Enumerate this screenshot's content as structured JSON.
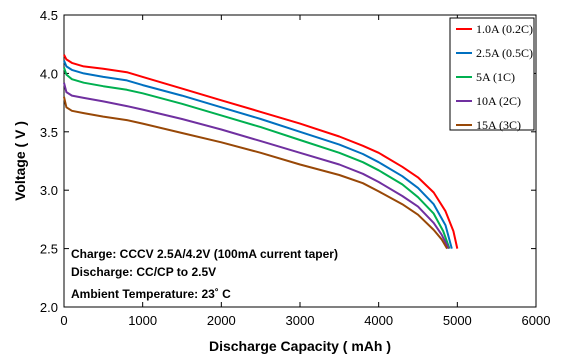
{
  "chart_data": {
    "type": "line",
    "title": "",
    "xlabel": "Discharge Capacity ( mAh )",
    "ylabel": "Voltage ( V )",
    "xlim": [
      0,
      6000
    ],
    "ylim": [
      2.0,
      4.5
    ],
    "xticks": [
      "0",
      "1000",
      "2000",
      "3000",
      "4000",
      "5000",
      "6000"
    ],
    "yticks": [
      "2.0",
      "2.5",
      "3.0",
      "3.5",
      "4.0",
      "4.5"
    ],
    "grid": false,
    "legend_position": "top-right",
    "series": [
      {
        "name": "1.0A (0.2C)",
        "color": "#ff0000",
        "points": [
          [
            0,
            4.16
          ],
          [
            30,
            4.12
          ],
          [
            100,
            4.09
          ],
          [
            250,
            4.06
          ],
          [
            500,
            4.04
          ],
          [
            800,
            4.01
          ],
          [
            1000,
            3.97
          ],
          [
            1500,
            3.87
          ],
          [
            2000,
            3.77
          ],
          [
            2500,
            3.67
          ],
          [
            3000,
            3.57
          ],
          [
            3500,
            3.46
          ],
          [
            3800,
            3.38
          ],
          [
            4000,
            3.32
          ],
          [
            4300,
            3.2
          ],
          [
            4500,
            3.11
          ],
          [
            4700,
            2.98
          ],
          [
            4850,
            2.82
          ],
          [
            4950,
            2.65
          ],
          [
            5000,
            2.5
          ]
        ]
      },
      {
        "name": "2.5A (0.5C)",
        "color": "#0070c0",
        "points": [
          [
            0,
            4.11
          ],
          [
            30,
            4.06
          ],
          [
            100,
            4.03
          ],
          [
            250,
            4.0
          ],
          [
            500,
            3.97
          ],
          [
            800,
            3.94
          ],
          [
            1000,
            3.9
          ],
          [
            1500,
            3.81
          ],
          [
            2000,
            3.71
          ],
          [
            2500,
            3.61
          ],
          [
            3000,
            3.5
          ],
          [
            3500,
            3.39
          ],
          [
            3800,
            3.31
          ],
          [
            4000,
            3.24
          ],
          [
            4300,
            3.12
          ],
          [
            4500,
            3.02
          ],
          [
            4700,
            2.88
          ],
          [
            4850,
            2.7
          ],
          [
            4930,
            2.5
          ]
        ]
      },
      {
        "name": "5A (1C)",
        "color": "#00b050",
        "points": [
          [
            0,
            4.05
          ],
          [
            30,
            3.99
          ],
          [
            100,
            3.95
          ],
          [
            250,
            3.92
          ],
          [
            500,
            3.89
          ],
          [
            800,
            3.86
          ],
          [
            1000,
            3.83
          ],
          [
            1500,
            3.74
          ],
          [
            2000,
            3.64
          ],
          [
            2500,
            3.54
          ],
          [
            3000,
            3.43
          ],
          [
            3500,
            3.32
          ],
          [
            3800,
            3.24
          ],
          [
            4000,
            3.17
          ],
          [
            4300,
            3.05
          ],
          [
            4500,
            2.94
          ],
          [
            4700,
            2.8
          ],
          [
            4820,
            2.65
          ],
          [
            4900,
            2.5
          ]
        ]
      },
      {
        "name": "10A (2C)",
        "color": "#7030a0",
        "points": [
          [
            0,
            3.92
          ],
          [
            30,
            3.84
          ],
          [
            100,
            3.81
          ],
          [
            250,
            3.79
          ],
          [
            500,
            3.76
          ],
          [
            800,
            3.72
          ],
          [
            1000,
            3.69
          ],
          [
            1500,
            3.61
          ],
          [
            2000,
            3.52
          ],
          [
            2500,
            3.42
          ],
          [
            3000,
            3.32
          ],
          [
            3500,
            3.22
          ],
          [
            3800,
            3.14
          ],
          [
            4000,
            3.07
          ],
          [
            4300,
            2.95
          ],
          [
            4500,
            2.86
          ],
          [
            4700,
            2.72
          ],
          [
            4800,
            2.62
          ],
          [
            4890,
            2.5
          ]
        ]
      },
      {
        "name": "15A (3C)",
        "color": "#984807",
        "points": [
          [
            0,
            3.8
          ],
          [
            30,
            3.71
          ],
          [
            100,
            3.68
          ],
          [
            250,
            3.66
          ],
          [
            500,
            3.63
          ],
          [
            800,
            3.6
          ],
          [
            1000,
            3.57
          ],
          [
            1500,
            3.49
          ],
          [
            2000,
            3.41
          ],
          [
            2500,
            3.32
          ],
          [
            3000,
            3.22
          ],
          [
            3500,
            3.13
          ],
          [
            3800,
            3.06
          ],
          [
            4000,
            2.99
          ],
          [
            4300,
            2.88
          ],
          [
            4500,
            2.79
          ],
          [
            4700,
            2.66
          ],
          [
            4800,
            2.58
          ],
          [
            4870,
            2.5
          ]
        ]
      }
    ],
    "annotations": [
      "Charge: CCCV 2.5A/4.2V (100mA current taper)",
      "Discharge:  CC/CP to 2.5V",
      "Ambient Temperature: 23˚ C"
    ]
  }
}
